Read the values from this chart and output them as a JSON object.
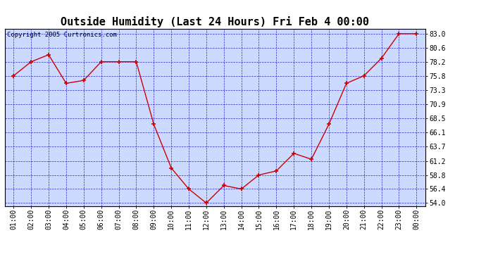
{
  "title": "Outside Humidity (Last 24 Hours) Fri Feb 4 00:00",
  "copyright": "Copyright 2005 Curtronics.com",
  "x_labels": [
    "01:00",
    "02:00",
    "03:00",
    "04:00",
    "05:00",
    "06:00",
    "07:00",
    "08:00",
    "09:00",
    "10:00",
    "11:00",
    "12:00",
    "13:00",
    "14:00",
    "15:00",
    "16:00",
    "17:00",
    "18:00",
    "19:00",
    "20:00",
    "21:00",
    "22:00",
    "23:00",
    "00:00"
  ],
  "x_values": [
    1,
    2,
    3,
    4,
    5,
    6,
    7,
    8,
    9,
    10,
    11,
    12,
    13,
    14,
    15,
    16,
    17,
    18,
    19,
    20,
    21,
    22,
    23,
    24
  ],
  "y_values": [
    75.8,
    78.2,
    79.4,
    74.5,
    75.0,
    78.2,
    78.2,
    78.2,
    67.5,
    60.0,
    56.4,
    54.0,
    57.0,
    56.4,
    58.8,
    59.5,
    62.5,
    61.5,
    67.5,
    74.5,
    75.8,
    78.8,
    83.0,
    83.0
  ],
  "y_ticks": [
    54.0,
    56.4,
    58.8,
    61.2,
    63.7,
    66.1,
    68.5,
    70.9,
    73.3,
    75.8,
    78.2,
    80.6,
    83.0
  ],
  "ylim": [
    53.5,
    83.8
  ],
  "xlim": [
    0.5,
    24.5
  ],
  "line_color": "#cc0000",
  "marker_color": "#cc0000",
  "bg_color": "#ccdaff",
  "grid_color": "#0000bb",
  "border_color": "#000000",
  "title_fontsize": 11,
  "tick_fontsize": 7,
  "copyright_fontsize": 6.5
}
